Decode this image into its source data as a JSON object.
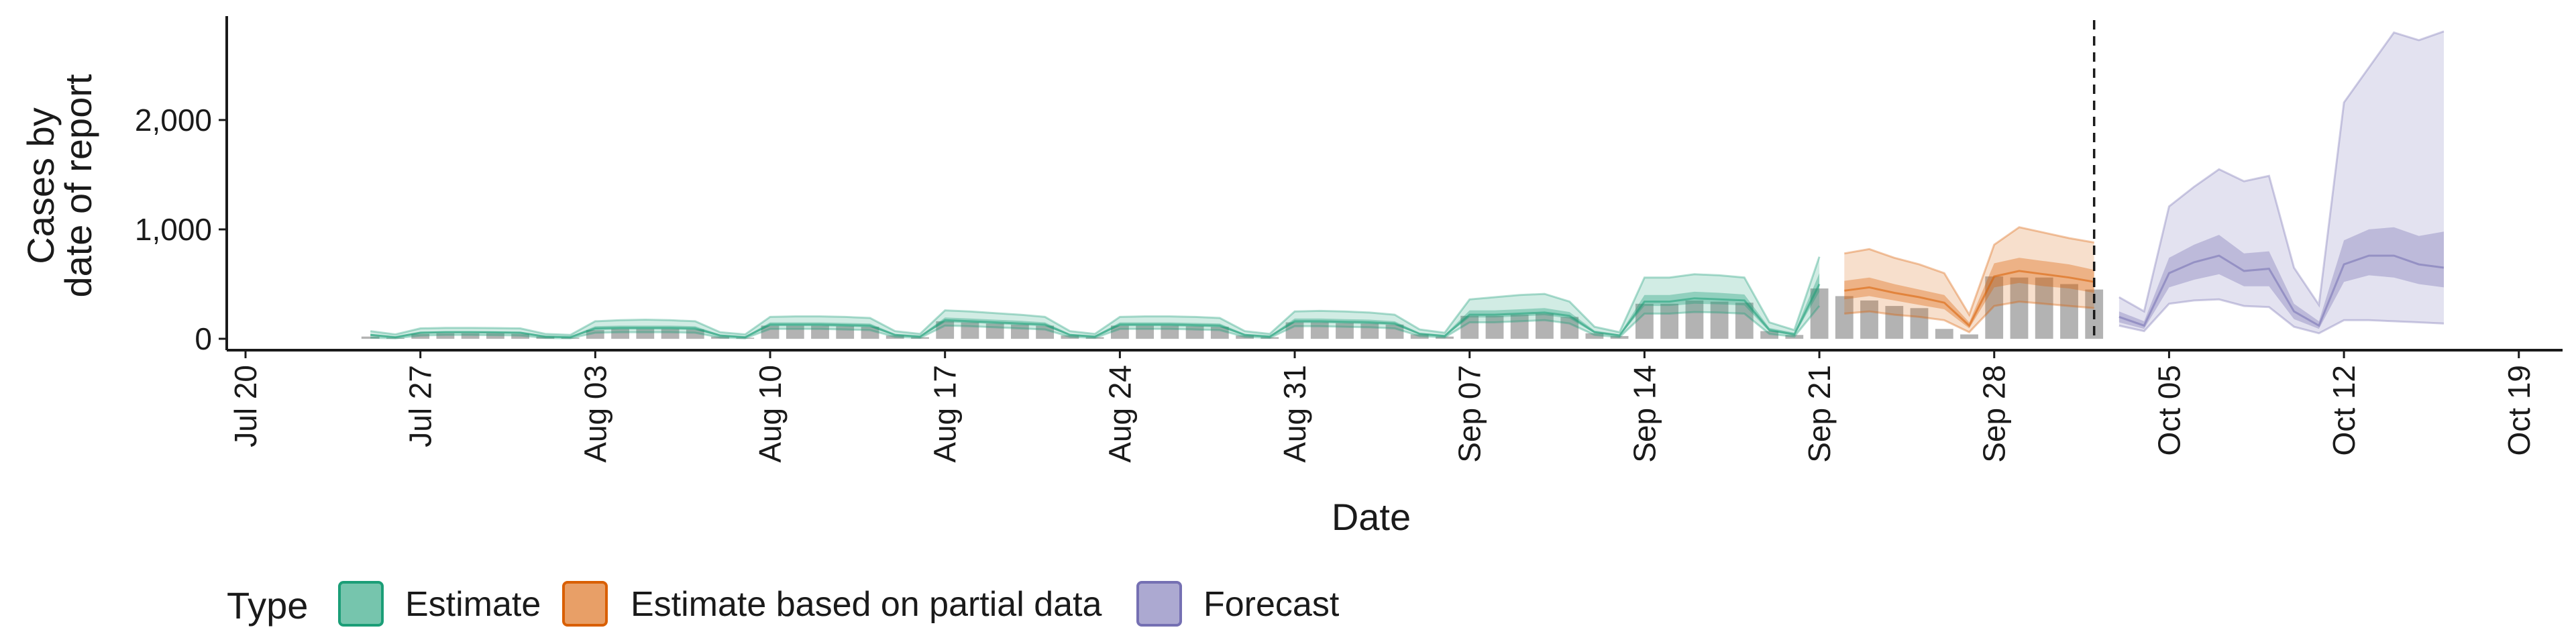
{
  "chart_data": {
    "type": "area",
    "title": "",
    "xlabel": "Date",
    "ylabel_lines": [
      "Cases by",
      "date of report"
    ],
    "ylim": [
      0,
      2950
    ],
    "y_ticks": [
      0,
      1000,
      2000
    ],
    "y_tick_labels": [
      "0",
      "1,000",
      "2,000"
    ],
    "x_ticks": [
      "2020-07-20",
      "2020-07-27",
      "2020-08-03",
      "2020-08-10",
      "2020-08-17",
      "2020-08-24",
      "2020-08-31",
      "2020-09-07",
      "2020-09-14",
      "2020-09-21",
      "2020-09-28",
      "2020-10-05",
      "2020-10-12",
      "2020-10-19"
    ],
    "x_tick_labels": [
      "Jul 20",
      "Jul 27",
      "Aug 03",
      "Aug 10",
      "Aug 17",
      "Aug 24",
      "Aug 31",
      "Sep 07",
      "Sep 14",
      "Sep 21",
      "Sep 28",
      "Oct 05",
      "Oct 12",
      "Oct 19"
    ],
    "xlim": [
      "2020-07-20",
      "2020-10-20"
    ],
    "forecast_start": "2020-10-02",
    "grid": false,
    "legend": {
      "title": "Type",
      "position": "bottom",
      "items": [
        {
          "label": "Estimate",
          "color": "#1b9e77"
        },
        {
          "label": "Estimate based on partial data",
          "color": "#d95f02"
        },
        {
          "label": "Forecast",
          "color": "#7570b3"
        }
      ]
    },
    "reported_cases": {
      "color": "#b3b3b3",
      "x": [
        "2020-07-25",
        "2020-07-26",
        "2020-07-27",
        "2020-07-28",
        "2020-07-29",
        "2020-07-30",
        "2020-07-31",
        "2020-08-01",
        "2020-08-02",
        "2020-08-03",
        "2020-08-04",
        "2020-08-05",
        "2020-08-06",
        "2020-08-07",
        "2020-08-08",
        "2020-08-09",
        "2020-08-10",
        "2020-08-11",
        "2020-08-12",
        "2020-08-13",
        "2020-08-14",
        "2020-08-15",
        "2020-08-16",
        "2020-08-17",
        "2020-08-18",
        "2020-08-19",
        "2020-08-20",
        "2020-08-21",
        "2020-08-22",
        "2020-08-23",
        "2020-08-24",
        "2020-08-25",
        "2020-08-26",
        "2020-08-27",
        "2020-08-28",
        "2020-08-29",
        "2020-08-30",
        "2020-08-31",
        "2020-09-01",
        "2020-09-02",
        "2020-09-03",
        "2020-09-04",
        "2020-09-05",
        "2020-09-06",
        "2020-09-07",
        "2020-09-08",
        "2020-09-09",
        "2020-09-10",
        "2020-09-11",
        "2020-09-12",
        "2020-09-13",
        "2020-09-14",
        "2020-09-15",
        "2020-09-16",
        "2020-09-17",
        "2020-09-18",
        "2020-09-19",
        "2020-09-20",
        "2020-09-21",
        "2020-09-22",
        "2020-09-23",
        "2020-09-24",
        "2020-09-25",
        "2020-09-26",
        "2020-09-27",
        "2020-09-28",
        "2020-09-29",
        "2020-09-30",
        "2020-10-01",
        "2020-10-02"
      ],
      "values": [
        20,
        10,
        45,
        50,
        50,
        50,
        45,
        20,
        10,
        80,
        90,
        90,
        90,
        85,
        20,
        10,
        120,
        120,
        120,
        115,
        110,
        30,
        15,
        160,
        150,
        140,
        130,
        120,
        30,
        15,
        120,
        120,
        120,
        115,
        110,
        30,
        15,
        150,
        150,
        145,
        140,
        130,
        40,
        20,
        210,
        210,
        220,
        230,
        200,
        50,
        25,
        320,
        320,
        350,
        340,
        330,
        70,
        35,
        460,
        390,
        350,
        300,
        280,
        90,
        40,
        570,
        560,
        560,
        500,
        450
      ]
    },
    "series": [
      {
        "name": "Estimate",
        "color": "#1b9e77",
        "x": [
          "2020-07-25",
          "2020-07-26",
          "2020-07-27",
          "2020-07-28",
          "2020-07-29",
          "2020-07-30",
          "2020-07-31",
          "2020-08-01",
          "2020-08-02",
          "2020-08-03",
          "2020-08-04",
          "2020-08-05",
          "2020-08-06",
          "2020-08-07",
          "2020-08-08",
          "2020-08-09",
          "2020-08-10",
          "2020-08-11",
          "2020-08-12",
          "2020-08-13",
          "2020-08-14",
          "2020-08-15",
          "2020-08-16",
          "2020-08-17",
          "2020-08-18",
          "2020-08-19",
          "2020-08-20",
          "2020-08-21",
          "2020-08-22",
          "2020-08-23",
          "2020-08-24",
          "2020-08-25",
          "2020-08-26",
          "2020-08-27",
          "2020-08-28",
          "2020-08-29",
          "2020-08-30",
          "2020-08-31",
          "2020-09-01",
          "2020-09-02",
          "2020-09-03",
          "2020-09-04",
          "2020-09-05",
          "2020-09-06",
          "2020-09-07",
          "2020-09-08",
          "2020-09-09",
          "2020-09-10",
          "2020-09-11",
          "2020-09-12",
          "2020-09-13",
          "2020-09-14",
          "2020-09-15",
          "2020-09-16",
          "2020-09-17",
          "2020-09-18",
          "2020-09-19",
          "2020-09-20",
          "2020-09-21"
        ],
        "median": [
          35,
          15,
          55,
          60,
          60,
          58,
          55,
          20,
          15,
          95,
          100,
          100,
          100,
          95,
          30,
          15,
          130,
          130,
          130,
          125,
          120,
          35,
          20,
          170,
          160,
          150,
          140,
          130,
          35,
          20,
          130,
          130,
          130,
          125,
          120,
          35,
          20,
          160,
          160,
          155,
          150,
          140,
          45,
          25,
          220,
          220,
          230,
          240,
          210,
          60,
          30,
          340,
          340,
          370,
          360,
          350,
          80,
          40,
          500
        ],
        "q25": [
          25,
          10,
          45,
          50,
          50,
          48,
          45,
          15,
          10,
          80,
          85,
          85,
          85,
          80,
          22,
          10,
          115,
          115,
          115,
          110,
          105,
          28,
          15,
          150,
          145,
          135,
          125,
          115,
          28,
          15,
          115,
          115,
          115,
          110,
          105,
          28,
          15,
          145,
          145,
          140,
          135,
          125,
          38,
          20,
          195,
          195,
          205,
          215,
          185,
          50,
          25,
          300,
          300,
          320,
          315,
          305,
          65,
          30,
          430
        ],
        "q75": [
          45,
          22,
          65,
          70,
          70,
          68,
          65,
          28,
          20,
          115,
          120,
          120,
          120,
          115,
          38,
          22,
          150,
          150,
          150,
          145,
          140,
          45,
          28,
          195,
          185,
          175,
          165,
          150,
          45,
          28,
          150,
          150,
          150,
          145,
          140,
          45,
          28,
          185,
          185,
          180,
          175,
          160,
          55,
          35,
          260,
          260,
          270,
          280,
          245,
          75,
          40,
          400,
          400,
          430,
          420,
          405,
          100,
          55,
          600
        ],
        "lower": [
          10,
          5,
          30,
          35,
          35,
          33,
          30,
          8,
          5,
          55,
          60,
          60,
          60,
          55,
          12,
          5,
          90,
          90,
          90,
          85,
          80,
          18,
          8,
          120,
          115,
          105,
          95,
          85,
          18,
          8,
          90,
          90,
          90,
          85,
          80,
          18,
          8,
          115,
          115,
          110,
          105,
          95,
          25,
          12,
          150,
          150,
          160,
          170,
          140,
          35,
          15,
          230,
          230,
          245,
          240,
          230,
          45,
          20,
          300
        ],
        "upper": [
          70,
          40,
          95,
          100,
          100,
          98,
          95,
          45,
          35,
          160,
          170,
          175,
          170,
          160,
          60,
          40,
          200,
          205,
          205,
          200,
          190,
          70,
          45,
          260,
          250,
          235,
          220,
          200,
          70,
          45,
          200,
          205,
          205,
          200,
          190,
          70,
          45,
          250,
          255,
          250,
          240,
          220,
          85,
          55,
          360,
          380,
          400,
          410,
          340,
          110,
          60,
          560,
          560,
          590,
          580,
          560,
          150,
          80,
          750
        ]
      },
      {
        "name": "Estimate based on partial data",
        "color": "#d95f02",
        "x": [
          "2020-09-22",
          "2020-09-23",
          "2020-09-24",
          "2020-09-25",
          "2020-09-26",
          "2020-09-27",
          "2020-09-28",
          "2020-09-29",
          "2020-09-30",
          "2020-10-01",
          "2020-10-02"
        ],
        "median": [
          440,
          470,
          420,
          380,
          330,
          120,
          570,
          620,
          590,
          560,
          520
        ],
        "q25": [
          360,
          390,
          350,
          310,
          270,
          95,
          470,
          510,
          480,
          460,
          420
        ],
        "q75": [
          530,
          560,
          500,
          450,
          400,
          150,
          690,
          740,
          710,
          680,
          630
        ],
        "lower": [
          230,
          250,
          220,
          200,
          170,
          60,
          300,
          340,
          320,
          300,
          280
        ],
        "upper": [
          780,
          820,
          740,
          680,
          600,
          220,
          860,
          1020,
          970,
          920,
          880
        ]
      },
      {
        "name": "Forecast",
        "color": "#7570b3",
        "x": [
          "2020-10-03",
          "2020-10-04",
          "2020-10-05",
          "2020-10-06",
          "2020-10-07",
          "2020-10-08",
          "2020-10-09",
          "2020-10-10",
          "2020-10-11",
          "2020-10-12",
          "2020-10-13",
          "2020-10-14",
          "2020-10-15",
          "2020-10-16"
        ],
        "median": [
          200,
          120,
          600,
          700,
          760,
          620,
          640,
          250,
          120,
          680,
          760,
          760,
          680,
          650
        ],
        "q25": [
          150,
          90,
          470,
          540,
          590,
          480,
          480,
          180,
          90,
          520,
          580,
          560,
          500,
          470
        ],
        "q75": [
          250,
          160,
          740,
          860,
          950,
          780,
          800,
          320,
          160,
          900,
          1000,
          1020,
          940,
          980
        ],
        "lower": [
          120,
          70,
          320,
          350,
          360,
          300,
          290,
          110,
          50,
          170,
          170,
          160,
          150,
          140
        ],
        "upper": [
          380,
          250,
          1210,
          1390,
          1550,
          1440,
          1490,
          650,
          310,
          2160,
          2480,
          2800,
          2730,
          2810
        ]
      }
    ]
  }
}
